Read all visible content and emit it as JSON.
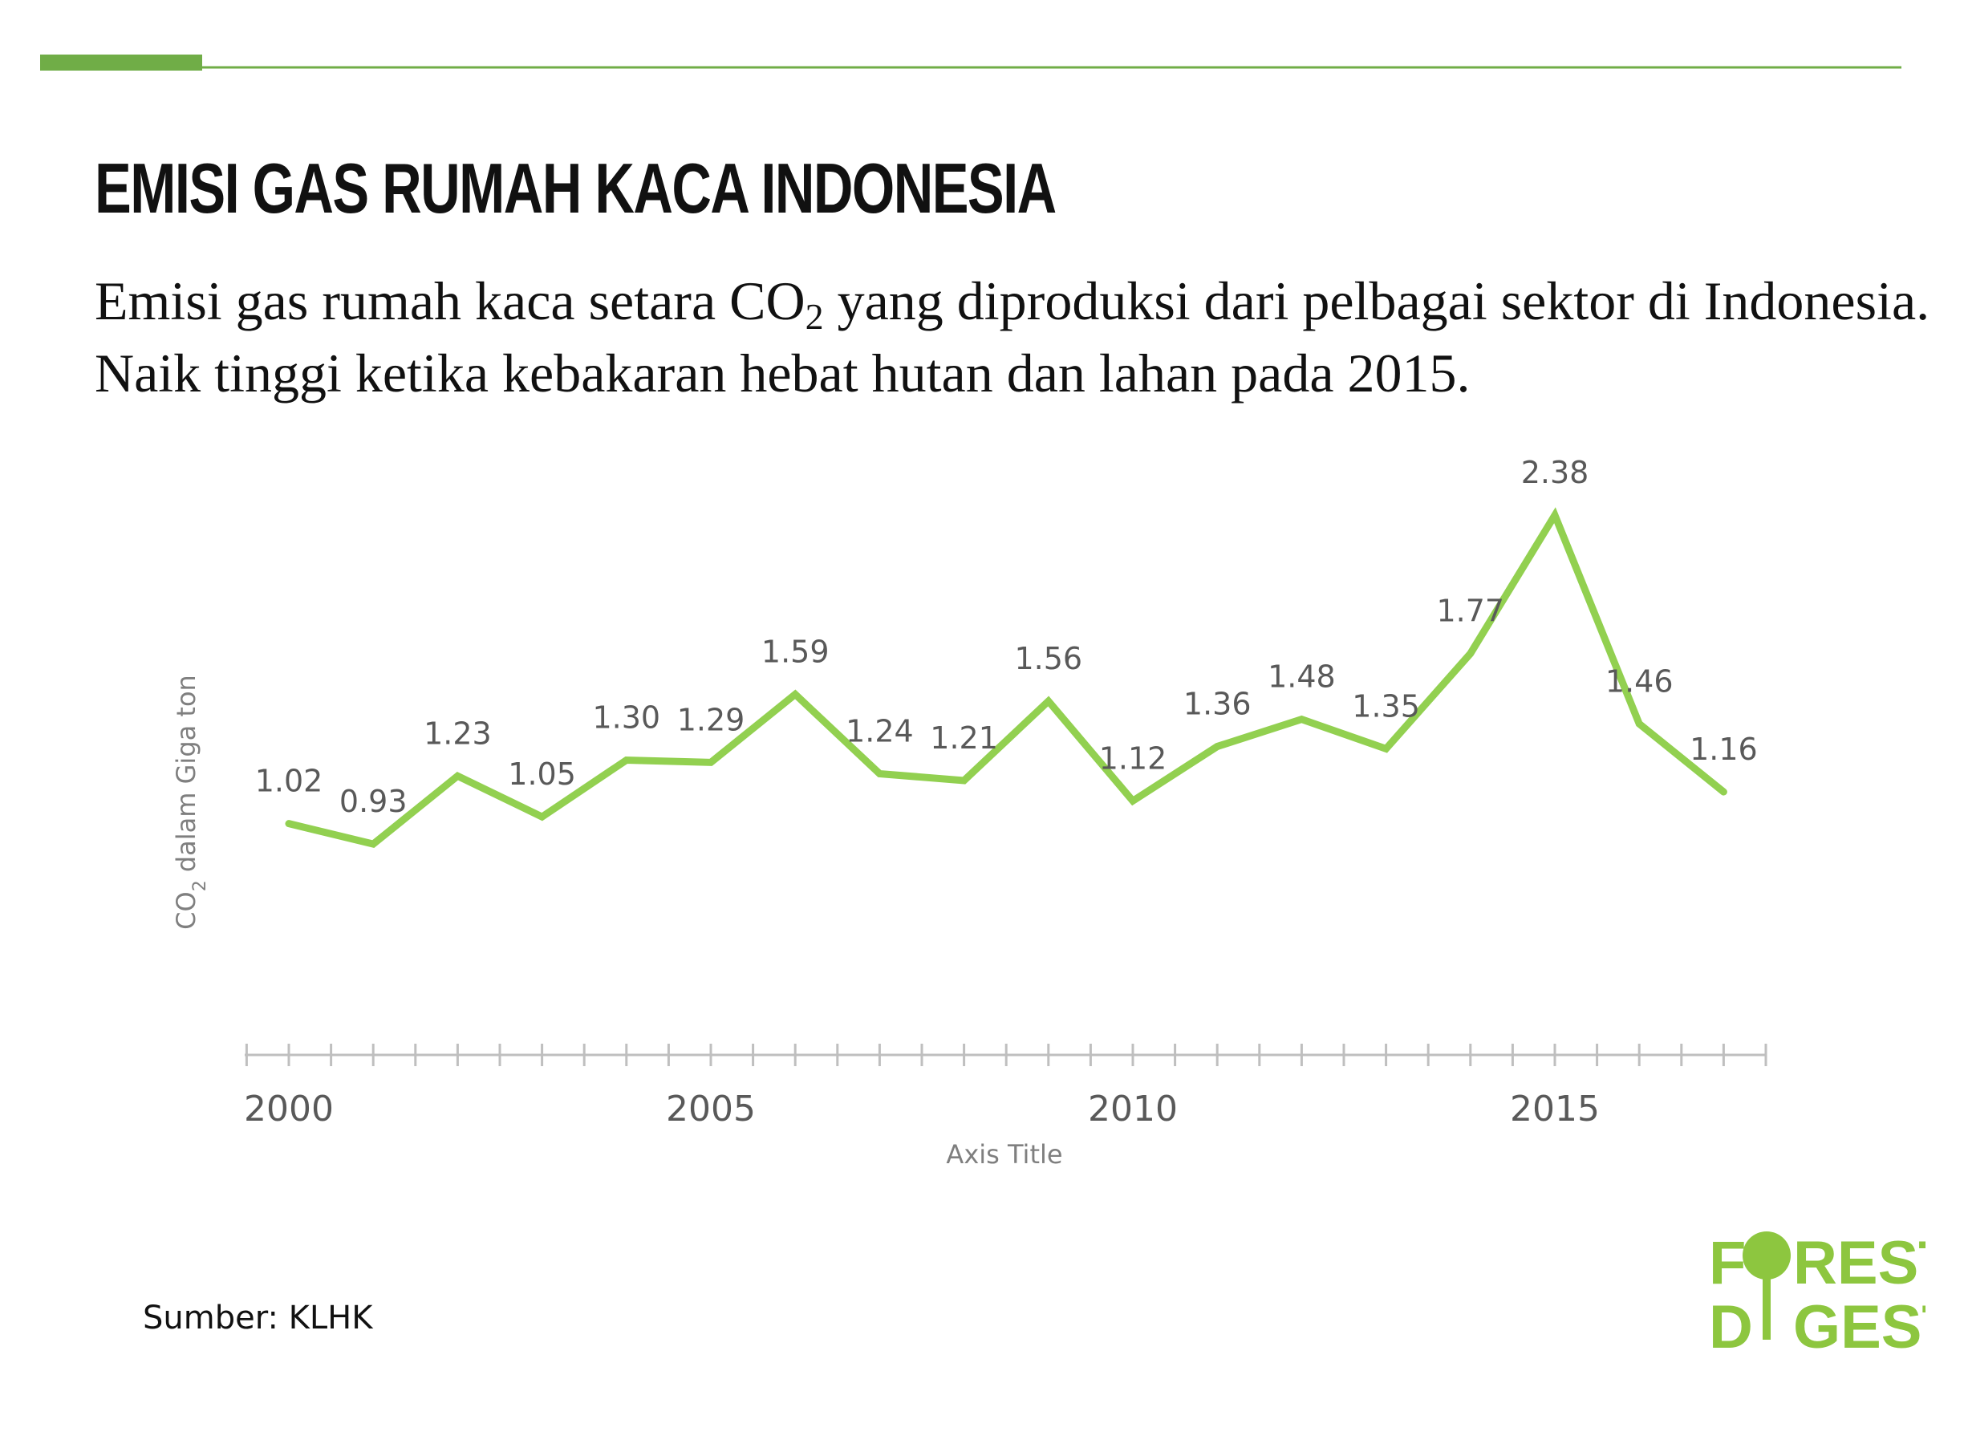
{
  "header": {
    "title": "EMISI GAS RUMAH KACA INDONESIA",
    "subtitle_part1": "Emisi gas rumah kaca setara CO",
    "subtitle_sub": "2",
    "subtitle_part2": " yang diproduksi dari pelbagai sektor di Indonesia. Naik tinggi ketika kebakaran hebat hutan dan lahan pada 2015."
  },
  "source": "Sumber: KLHK",
  "logo": {
    "line1_a": "F",
    "line1_b": "REST",
    "line2_a": "D",
    "line2_b": "GEST",
    "icon": "tree-icon"
  },
  "colors": {
    "accent": "#70ad47",
    "line": "#92d050",
    "logo": "#8dc63f",
    "axis": "#bfbfbf",
    "label": "#595959",
    "axis_title": "#7f7f7f"
  },
  "chart_data": {
    "type": "line",
    "title": "",
    "xlabel": "Axis Title",
    "ylabel_part1": "CO",
    "ylabel_sub": "2",
    "ylabel_part2": " dalam Giga ton",
    "x": [
      2000,
      2001,
      2002,
      2003,
      2004,
      2005,
      2006,
      2007,
      2008,
      2009,
      2010,
      2011,
      2012,
      2013,
      2014,
      2015,
      2016,
      2017
    ],
    "series": [
      {
        "values": [
          1.02,
          0.93,
          1.23,
          1.05,
          1.3,
          1.29,
          1.59,
          1.24,
          1.21,
          1.56,
          1.12,
          1.36,
          1.48,
          1.35,
          1.77,
          2.38,
          1.46,
          1.16
        ]
      }
    ],
    "data_labels": [
      "1.02",
      "0.93",
      "1.23",
      "1.05",
      "1.30",
      "1.29",
      "1.59",
      "1.24",
      "1.21",
      "1.56",
      "1.12",
      "1.36",
      "1.48",
      "1.35",
      "1.77",
      "2.38",
      "1.46",
      "1.16"
    ],
    "xticks": [
      "2000",
      "2005",
      "2010",
      "2015"
    ],
    "xlim": [
      1999.5,
      2017.5
    ],
    "ylim": [
      0,
      2.6
    ],
    "grid": false,
    "legend": "none"
  }
}
